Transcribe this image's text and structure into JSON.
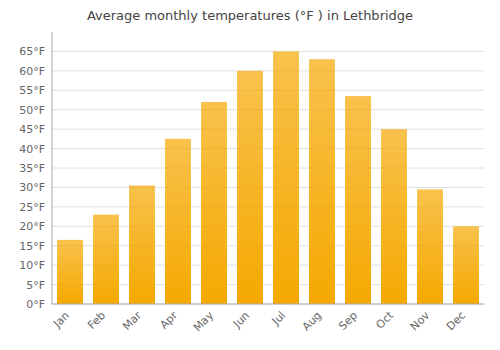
{
  "chart_data": {
    "type": "bar",
    "title": "Average monthly temperatures (°F ) in Lethbridge",
    "categories": [
      "Jan",
      "Feb",
      "Mar",
      "Apr",
      "May",
      "Jun",
      "Jul",
      "Aug",
      "Sep",
      "Oct",
      "Nov",
      "Dec"
    ],
    "values": [
      16.5,
      23,
      30.5,
      42.5,
      52,
      60,
      65,
      63,
      53.5,
      45,
      29.5,
      20
    ],
    "color": "#F5A800",
    "ylim": [
      0,
      70
    ],
    "yticks": [
      {
        "value": 0,
        "label": "0°F"
      },
      {
        "value": 5,
        "label": "5°F"
      },
      {
        "value": 10,
        "label": "10°F"
      },
      {
        "value": 15,
        "label": "15°F"
      },
      {
        "value": 20,
        "label": "20°F"
      },
      {
        "value": 25,
        "label": "25°F"
      },
      {
        "value": 30,
        "label": "30°F"
      },
      {
        "value": 35,
        "label": "35°F"
      },
      {
        "value": 40,
        "label": "40°F"
      },
      {
        "value": 45,
        "label": "45°F"
      },
      {
        "value": 50,
        "label": "50°F"
      },
      {
        "value": 55,
        "label": "55°F"
      },
      {
        "value": 60,
        "label": "60°F"
      },
      {
        "value": 65,
        "label": "65°F"
      }
    ],
    "grid": true
  }
}
